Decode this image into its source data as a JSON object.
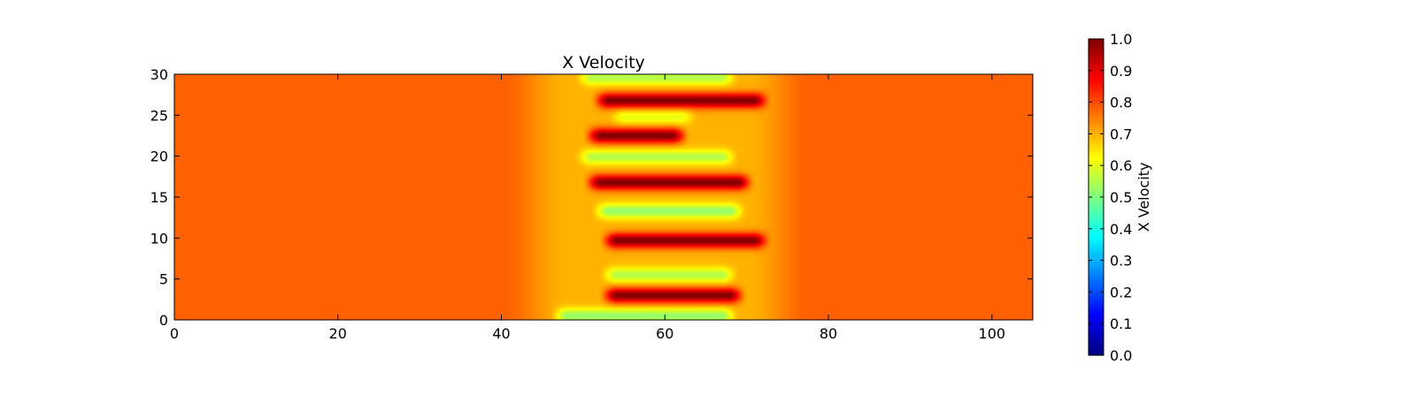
{
  "chart_data": {
    "type": "heatmap",
    "title": "X Velocity",
    "xlabel": "",
    "ylabel": "",
    "xlim": [
      0,
      105
    ],
    "ylim": [
      0,
      30
    ],
    "x_ticks": [
      0,
      20,
      40,
      60,
      80,
      100
    ],
    "y_ticks": [
      0,
      5,
      10,
      15,
      20,
      25,
      30
    ],
    "x_tick_labels": [
      "0",
      "20",
      "40",
      "60",
      "80",
      "100"
    ],
    "y_tick_labels": [
      "0",
      "5",
      "10",
      "15",
      "20",
      "25",
      "30"
    ],
    "colormap": "jet",
    "background_value": 0.78,
    "colorbar": {
      "label": "X Velocity",
      "range": [
        0.0,
        1.0
      ],
      "ticks": [
        0.0,
        0.1,
        0.2,
        0.3,
        0.4,
        0.5,
        0.6,
        0.7,
        0.8,
        0.9,
        1.0
      ],
      "tick_labels": [
        "0.0",
        "0.1",
        "0.2",
        "0.3",
        "0.4",
        "0.5",
        "0.6",
        "0.7",
        "0.8",
        "0.9",
        "1.0"
      ]
    },
    "mixing_zone": {
      "x_range": [
        46,
        72
      ],
      "mean_value": 0.7
    },
    "fingers": [
      {
        "y": 0.5,
        "x_start": 47,
        "x_end": 68,
        "value": 0.52
      },
      {
        "y": 3.0,
        "x_start": 53,
        "x_end": 69,
        "value": 1.0
      },
      {
        "y": 5.5,
        "x_start": 53,
        "x_end": 68,
        "value": 0.55
      },
      {
        "y": 9.7,
        "x_start": 53,
        "x_end": 72,
        "value": 1.0
      },
      {
        "y": 13.3,
        "x_start": 52,
        "x_end": 69,
        "value": 0.52
      },
      {
        "y": 16.8,
        "x_start": 51,
        "x_end": 70,
        "value": 1.0
      },
      {
        "y": 19.9,
        "x_start": 50,
        "x_end": 68,
        "value": 0.55
      },
      {
        "y": 22.5,
        "x_start": 51,
        "x_end": 62,
        "value": 1.0
      },
      {
        "y": 24.8,
        "x_start": 54,
        "x_end": 63,
        "value": 0.6
      },
      {
        "y": 26.8,
        "x_start": 52,
        "x_end": 72,
        "value": 1.0
      },
      {
        "y": 29.6,
        "x_start": 50,
        "x_end": 68,
        "value": 0.55
      }
    ]
  }
}
